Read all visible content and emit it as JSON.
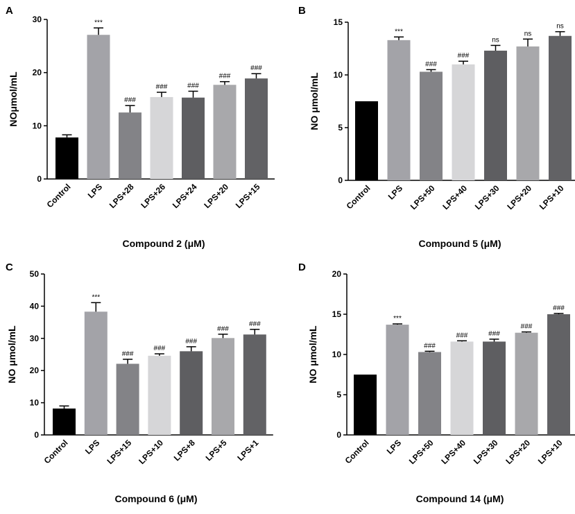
{
  "chart_data": [
    {
      "type": "bar",
      "panel": "A",
      "title": "",
      "xlabel": "Compound 2  (μM)",
      "ylabel": "NOμmol/mL",
      "ylim": [
        0,
        30
      ],
      "yticks": [
        0,
        10,
        20,
        30
      ],
      "categories": [
        "Control",
        "LPS",
        "LPS+28",
        "LPS+26",
        "LPS+24",
        "LPS+20",
        "LPS+15"
      ],
      "values": [
        7.8,
        27.1,
        12.5,
        15.4,
        15.3,
        17.7,
        18.9
      ],
      "errors": [
        0.5,
        1.3,
        1.3,
        0.9,
        1.2,
        0.6,
        0.9
      ],
      "annotations": [
        "",
        "***",
        "###",
        "###",
        "###",
        "###",
        "###"
      ],
      "colors": [
        "#000000",
        "#a3a3a8",
        "#838387",
        "#d6d6d8",
        "#5e5e61",
        "#a8a8ab",
        "#626265"
      ]
    },
    {
      "type": "bar",
      "panel": "B",
      "title": "",
      "xlabel": "Compound 5 (μM)",
      "ylabel": "NO μmol/mL",
      "ylim": [
        0,
        15
      ],
      "yticks": [
        0,
        5,
        10,
        15
      ],
      "categories": [
        "Control",
        "LPS",
        "LPS+50",
        "LPS+40",
        "LPS+30",
        "LPS+20",
        "LPS+10"
      ],
      "values": [
        7.5,
        13.3,
        10.3,
        11.0,
        12.3,
        12.7,
        13.7
      ],
      "errors": [
        0,
        0.3,
        0.2,
        0.3,
        0.5,
        0.7,
        0.4
      ],
      "annotations": [
        "",
        "***",
        "###",
        "###",
        "ns",
        "ns",
        "ns"
      ],
      "colors": [
        "#000000",
        "#a3a3a8",
        "#838387",
        "#d6d6d8",
        "#5e5e61",
        "#a8a8ab",
        "#626265"
      ]
    },
    {
      "type": "bar",
      "panel": "C",
      "title": "",
      "xlabel": "Compound 6 (μM)",
      "ylabel": "NO μmol/mL",
      "ylim": [
        0,
        50
      ],
      "yticks": [
        0,
        10,
        20,
        30,
        40,
        50
      ],
      "categories": [
        "Control",
        "LPS",
        "LPS+15",
        "LPS+10",
        "LPS+8",
        "LPS+5",
        "LPS+1"
      ],
      "values": [
        8.2,
        38.3,
        22.1,
        24.6,
        26.0,
        30.1,
        31.2
      ],
      "errors": [
        0.8,
        2.8,
        1.4,
        0.6,
        1.4,
        1.2,
        1.6
      ],
      "annotations": [
        "",
        "***",
        "###",
        "###",
        "###",
        "###",
        "###"
      ],
      "colors": [
        "#000000",
        "#a3a3a8",
        "#838387",
        "#d6d6d8",
        "#5e5e61",
        "#a8a8ab",
        "#626265"
      ]
    },
    {
      "type": "bar",
      "panel": "D",
      "title": "",
      "xlabel": "Compound 14 (μM)",
      "ylabel": "NO μmol/mL",
      "ylim": [
        0,
        20
      ],
      "yticks": [
        0,
        5,
        10,
        15,
        20
      ],
      "categories": [
        "Control",
        "LPS",
        "LPS+50",
        "LPS+40",
        "LPS+30",
        "LPS+20",
        "LPS+10"
      ],
      "values": [
        7.5,
        13.7,
        10.3,
        11.6,
        11.6,
        12.7,
        15.0
      ],
      "errors": [
        0,
        0.1,
        0.1,
        0.1,
        0.3,
        0.1,
        0.1
      ],
      "annotations": [
        "",
        "***",
        "###",
        "###",
        "###",
        "###",
        "###"
      ],
      "colors": [
        "#000000",
        "#a3a3a8",
        "#838387",
        "#d6d6d8",
        "#5e5e61",
        "#a8a8ab",
        "#626265"
      ]
    }
  ]
}
